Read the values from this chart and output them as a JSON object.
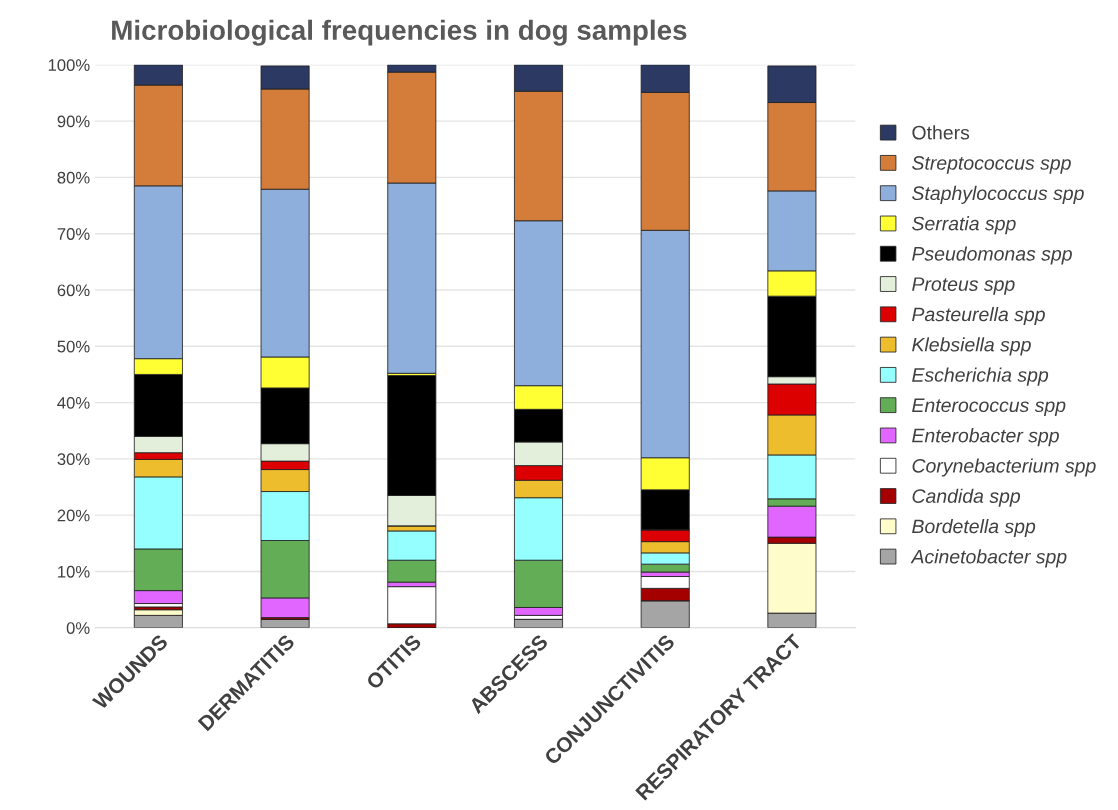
{
  "chart_data": {
    "type": "bar",
    "title": "Microbiological frequencies in dog samples",
    "stacked": true,
    "categories": [
      "WOUNDS",
      "DERMATITIS",
      "OTITIS",
      "ABSCESS",
      "CONJUNCTIVITIS",
      "RESPIRATORY TRACT"
    ],
    "series": [
      {
        "name": "Acinetobacter spp",
        "color": "#a5a5a5",
        "values": [
          2.2,
          1.5,
          0,
          1.5,
          4.8,
          2.6
        ]
      },
      {
        "name": "Bordetella spp",
        "color": "#fffccc",
        "values": [
          1.0,
          0,
          0,
          0,
          0,
          12.4
        ]
      },
      {
        "name": "Candida spp",
        "color": "#a50000",
        "values": [
          0.5,
          0.3,
          0.7,
          0,
          2.2,
          1.1
        ]
      },
      {
        "name": "Corynebacterium spp",
        "color": "#ffffff",
        "values": [
          0.6,
          null,
          6.6,
          0.7,
          2.1,
          null
        ]
      },
      {
        "name": "Enterobacter spp",
        "color": "#e066ff",
        "values": [
          2.3,
          3.5,
          0.8,
          1.4,
          0.8,
          5.5
        ]
      },
      {
        "name": "Enterococcus spp",
        "color": "#62ad55",
        "values": [
          7.4,
          10.2,
          3.9,
          8.4,
          1.4,
          1.3
        ]
      },
      {
        "name": "Escherichia spp",
        "color": "#94fffe",
        "values": [
          12.8,
          8.7,
          5.2,
          11.1,
          2.0,
          7.8
        ]
      },
      {
        "name": "Klebsiella spp",
        "color": "#eebd2e",
        "values": [
          3.1,
          3.9,
          0.9,
          3.1,
          2.0,
          7.1
        ]
      },
      {
        "name": "Pasteurella spp",
        "color": "#dd0000",
        "values": [
          1.2,
          1.5,
          0,
          2.6,
          2.1,
          5.5
        ]
      },
      {
        "name": "Proteus spp",
        "color": "#e3eedb",
        "values": [
          2.9,
          3.1,
          5.4,
          4.2,
          0,
          1.3
        ]
      },
      {
        "name": "Pseudomonas spp",
        "color": "#000000",
        "values": [
          11.0,
          9.9,
          21.3,
          5.8,
          7.1,
          14.3
        ]
      },
      {
        "name": "Serratia spp",
        "color": "#ffff33",
        "values": [
          2.8,
          5.5,
          0.4,
          4.2,
          5.7,
          4.5
        ]
      },
      {
        "name": "Staphylococcus spp",
        "color": "#8eaedb",
        "values": [
          30.7,
          29.8,
          33.8,
          29.3,
          40.4,
          14.2
        ]
      },
      {
        "name": "Streptococcus spp",
        "color": "#d47c3a",
        "values": [
          17.9,
          17.8,
          19.7,
          23.0,
          24.5,
          15.7
        ]
      },
      {
        "name": "Others",
        "color": "#2c3a63",
        "values": [
          3.6,
          4.1,
          1.3,
          4.7,
          4.9,
          6.5
        ]
      }
    ],
    "ylim": [
      0,
      100
    ],
    "yticks": [
      {
        "value": 0,
        "label": "0%"
      },
      {
        "value": 10,
        "label": "10%"
      },
      {
        "value": 20,
        "label": "20%"
      },
      {
        "value": 30,
        "label": "30%"
      },
      {
        "value": 40,
        "label": "40%"
      },
      {
        "value": 50,
        "label": "50%"
      },
      {
        "value": 60,
        "label": "60%"
      },
      {
        "value": 70,
        "label": "70%"
      },
      {
        "value": 80,
        "label": "80%"
      },
      {
        "value": 90,
        "label": "90%"
      },
      {
        "value": 100,
        "label": "100%"
      }
    ],
    "grid": "y",
    "legend": "right"
  }
}
